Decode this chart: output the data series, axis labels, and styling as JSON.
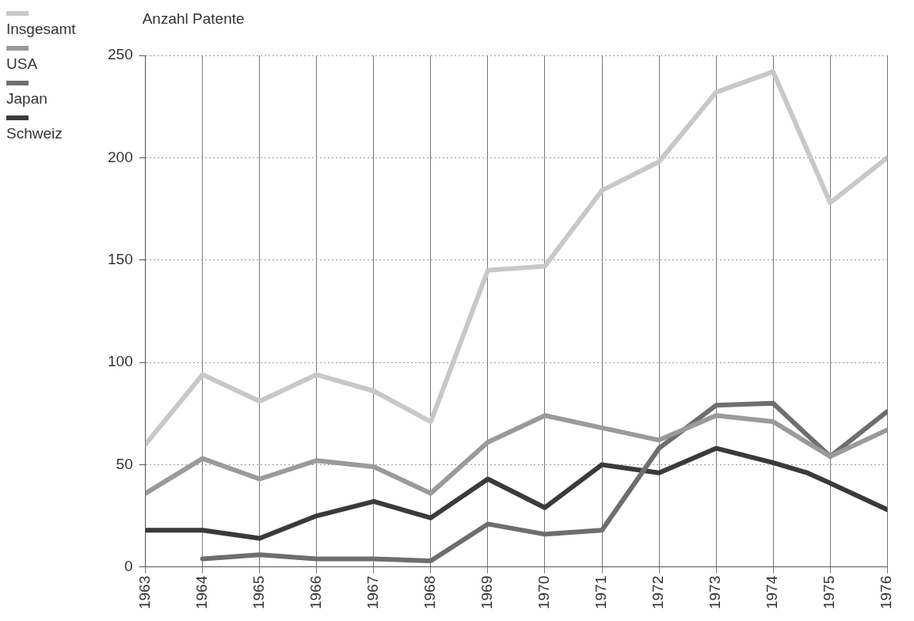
{
  "chart_data": {
    "type": "line",
    "ylabel": "Anzahl Patente",
    "x": [
      1963,
      1964,
      1965,
      1966,
      1967,
      1968,
      1969,
      1970,
      1971,
      1972,
      1973,
      1974,
      1975,
      1976
    ],
    "xlim": [
      1963,
      1976
    ],
    "xticks": [
      1963,
      1964,
      1965,
      1966,
      1967,
      1968,
      1969,
      1970,
      1971,
      1972,
      1973,
      1974,
      1975,
      1976
    ],
    "ylim": [
      0,
      250
    ],
    "yticks": [
      0,
      50,
      100,
      150,
      200,
      250
    ],
    "grid": true,
    "legend": "top left",
    "marker": "none",
    "line_style": "solid",
    "series": [
      {
        "name": "Insgesamt",
        "color": "#c8c8c8",
        "values": [
          60,
          94,
          81,
          94,
          86,
          71,
          145,
          147,
          184,
          198,
          232,
          242,
          178,
          200
        ]
      },
      {
        "name": "USA",
        "color": "#9a9a9a",
        "values": [
          36,
          53,
          43,
          52,
          49,
          36,
          61,
          74,
          68,
          62,
          74,
          71,
          54,
          67
        ]
      },
      {
        "name": "Japan",
        "color": "#6e6e6e",
        "values": [
          null,
          4,
          6,
          4,
          4,
          3,
          21,
          16,
          18,
          58,
          79,
          80,
          54,
          76
        ]
      },
      {
        "name": "Schweiz",
        "color": "#3a3a3a",
        "x": [
          1963,
          1964,
          1965,
          1966,
          1967,
          1968,
          1969,
          1970,
          1971,
          1972,
          1973,
          1974,
          1974.6,
          1975,
          1976
        ],
        "values": [
          18,
          18,
          14,
          25,
          32,
          24,
          43,
          29,
          50,
          46,
          58,
          51,
          46,
          41,
          28
        ]
      }
    ]
  }
}
